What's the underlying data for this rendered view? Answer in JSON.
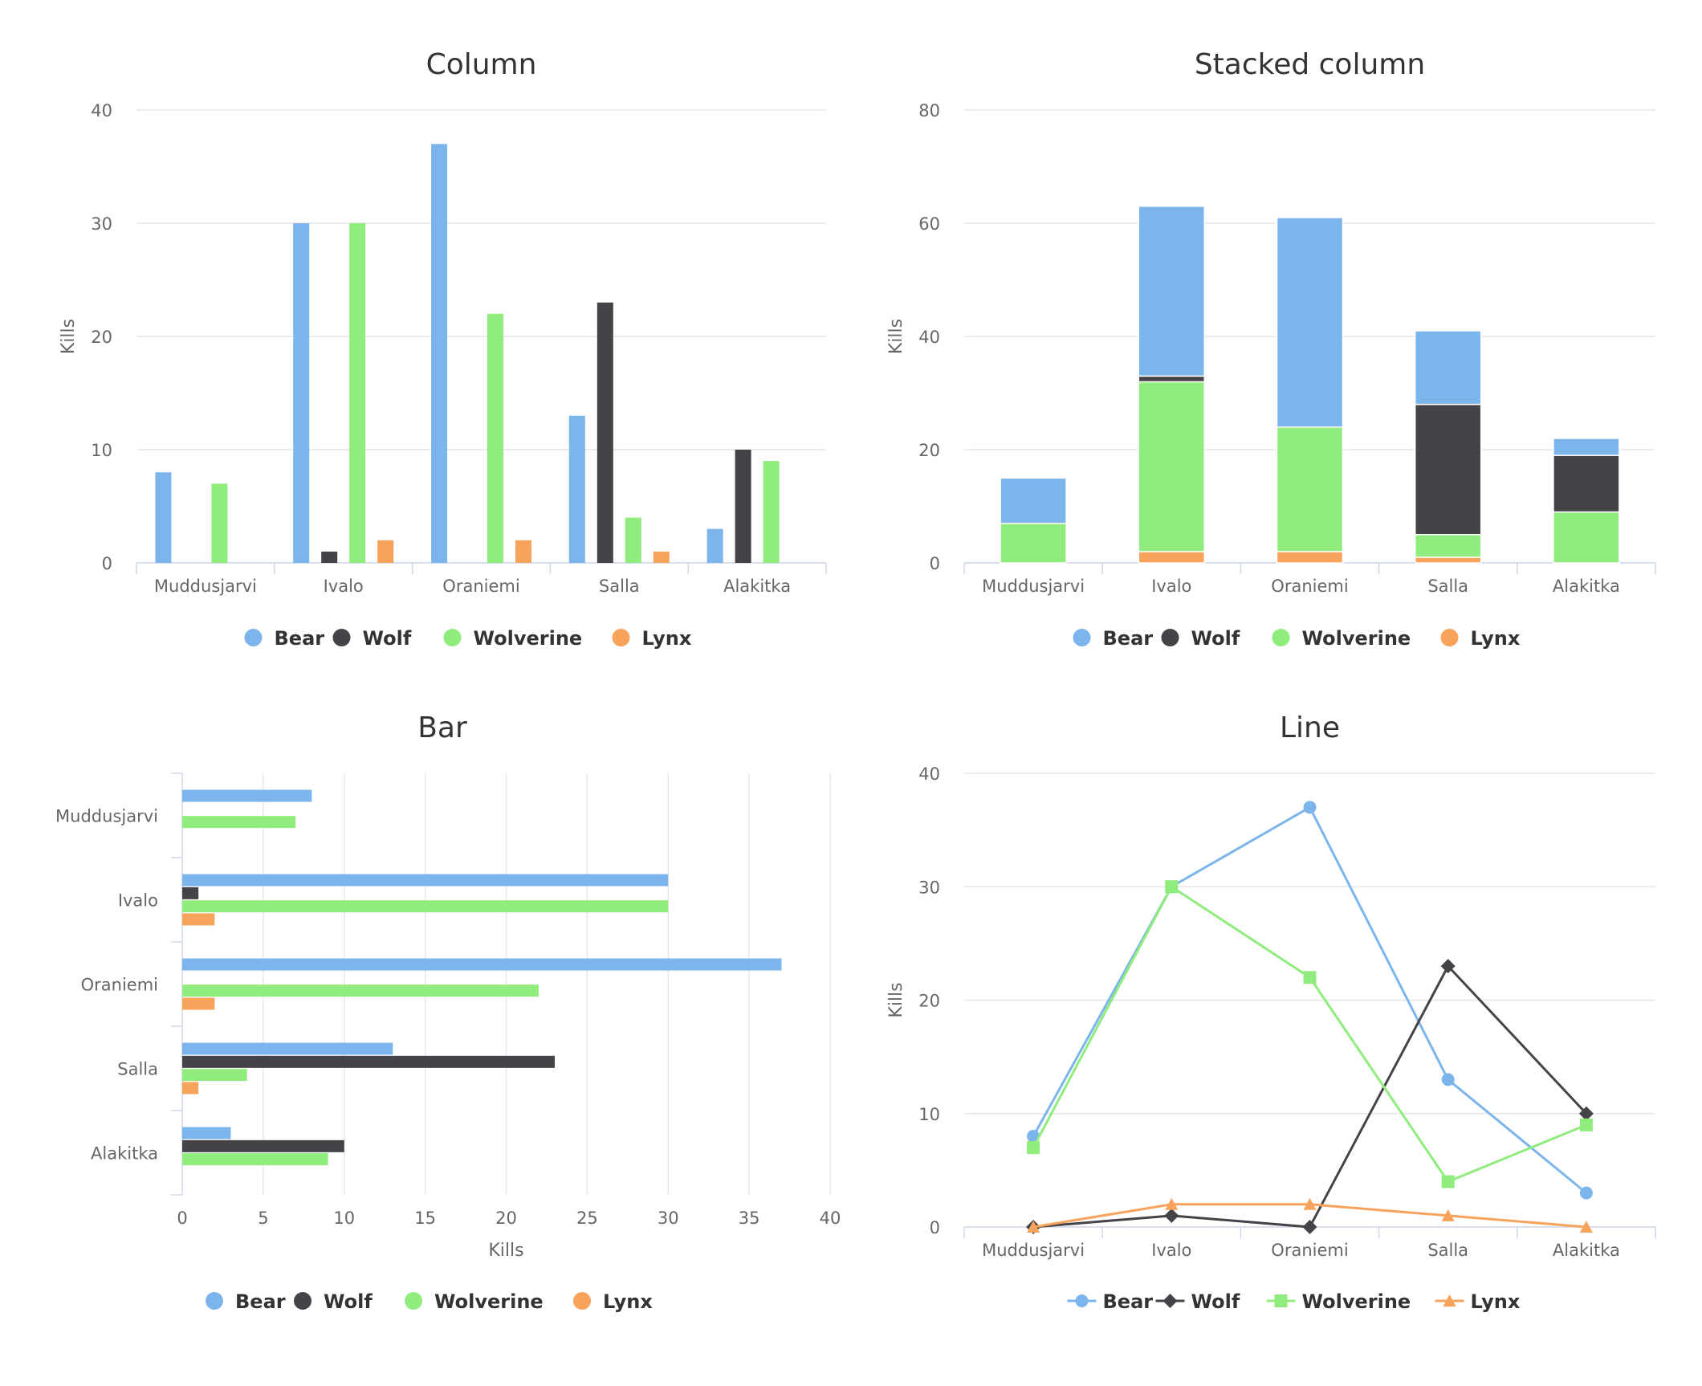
{
  "colors": {
    "Bear": "#7cb5ec",
    "Wolf": "#434348",
    "Wolverine": "#90ed7d",
    "Lynx": "#f7a35c"
  },
  "chart_data": [
    {
      "type": "bar",
      "orientation": "vertical",
      "title": "Column",
      "categories": [
        "Muddusjarvi",
        "Ivalo",
        "Oraniemi",
        "Salla",
        "Alakitka"
      ],
      "ylabel": "Kills",
      "ylim": [
        0,
        40
      ],
      "yticks": [
        0,
        10,
        20,
        30,
        40
      ],
      "grid": true,
      "legend": "bottom",
      "series": [
        {
          "name": "Bear",
          "values": [
            8,
            30,
            37,
            13,
            3
          ]
        },
        {
          "name": "Wolf",
          "values": [
            0,
            1,
            0,
            23,
            10
          ]
        },
        {
          "name": "Wolverine",
          "values": [
            7,
            30,
            22,
            4,
            9
          ]
        },
        {
          "name": "Lynx",
          "values": [
            0,
            2,
            2,
            1,
            0
          ]
        }
      ]
    },
    {
      "type": "bar",
      "orientation": "vertical",
      "stacked": true,
      "title": "Stacked column",
      "categories": [
        "Muddusjarvi",
        "Ivalo",
        "Oraniemi",
        "Salla",
        "Alakitka"
      ],
      "ylabel": "Kills",
      "ylim": [
        0,
        80
      ],
      "yticks": [
        0,
        20,
        40,
        60,
        80
      ],
      "grid": true,
      "legend": "bottom",
      "series": [
        {
          "name": "Bear",
          "values": [
            8,
            30,
            37,
            13,
            3
          ]
        },
        {
          "name": "Wolf",
          "values": [
            0,
            1,
            0,
            23,
            10
          ]
        },
        {
          "name": "Wolverine",
          "values": [
            7,
            30,
            22,
            4,
            9
          ]
        },
        {
          "name": "Lynx",
          "values": [
            0,
            2,
            2,
            1,
            0
          ]
        }
      ]
    },
    {
      "type": "bar",
      "orientation": "horizontal",
      "title": "Bar",
      "categories": [
        "Muddusjarvi",
        "Ivalo",
        "Oraniemi",
        "Salla",
        "Alakitka"
      ],
      "xlabel": "Kills",
      "xlim": [
        0,
        40
      ],
      "xticks": [
        0,
        5,
        10,
        15,
        20,
        25,
        30,
        35,
        40
      ],
      "grid": true,
      "legend": "bottom",
      "series": [
        {
          "name": "Bear",
          "values": [
            8,
            30,
            37,
            13,
            3
          ]
        },
        {
          "name": "Wolf",
          "values": [
            0,
            1,
            0,
            23,
            10
          ]
        },
        {
          "name": "Wolverine",
          "values": [
            7,
            30,
            22,
            4,
            9
          ]
        },
        {
          "name": "Lynx",
          "values": [
            0,
            2,
            2,
            1,
            0
          ]
        }
      ]
    },
    {
      "type": "line",
      "title": "Line",
      "categories": [
        "Muddusjarvi",
        "Ivalo",
        "Oraniemi",
        "Salla",
        "Alakitka"
      ],
      "ylabel": "Kills",
      "ylim": [
        0,
        40
      ],
      "yticks": [
        0,
        10,
        20,
        30,
        40
      ],
      "grid": true,
      "legend": "bottom",
      "series": [
        {
          "name": "Bear",
          "marker": "circle",
          "values": [
            8,
            30,
            37,
            13,
            3
          ]
        },
        {
          "name": "Wolf",
          "marker": "diamond",
          "values": [
            0,
            1,
            0,
            23,
            10
          ]
        },
        {
          "name": "Wolverine",
          "marker": "square",
          "values": [
            7,
            30,
            22,
            4,
            9
          ]
        },
        {
          "name": "Lynx",
          "marker": "triangle",
          "values": [
            0,
            2,
            2,
            1,
            0
          ]
        }
      ]
    }
  ]
}
